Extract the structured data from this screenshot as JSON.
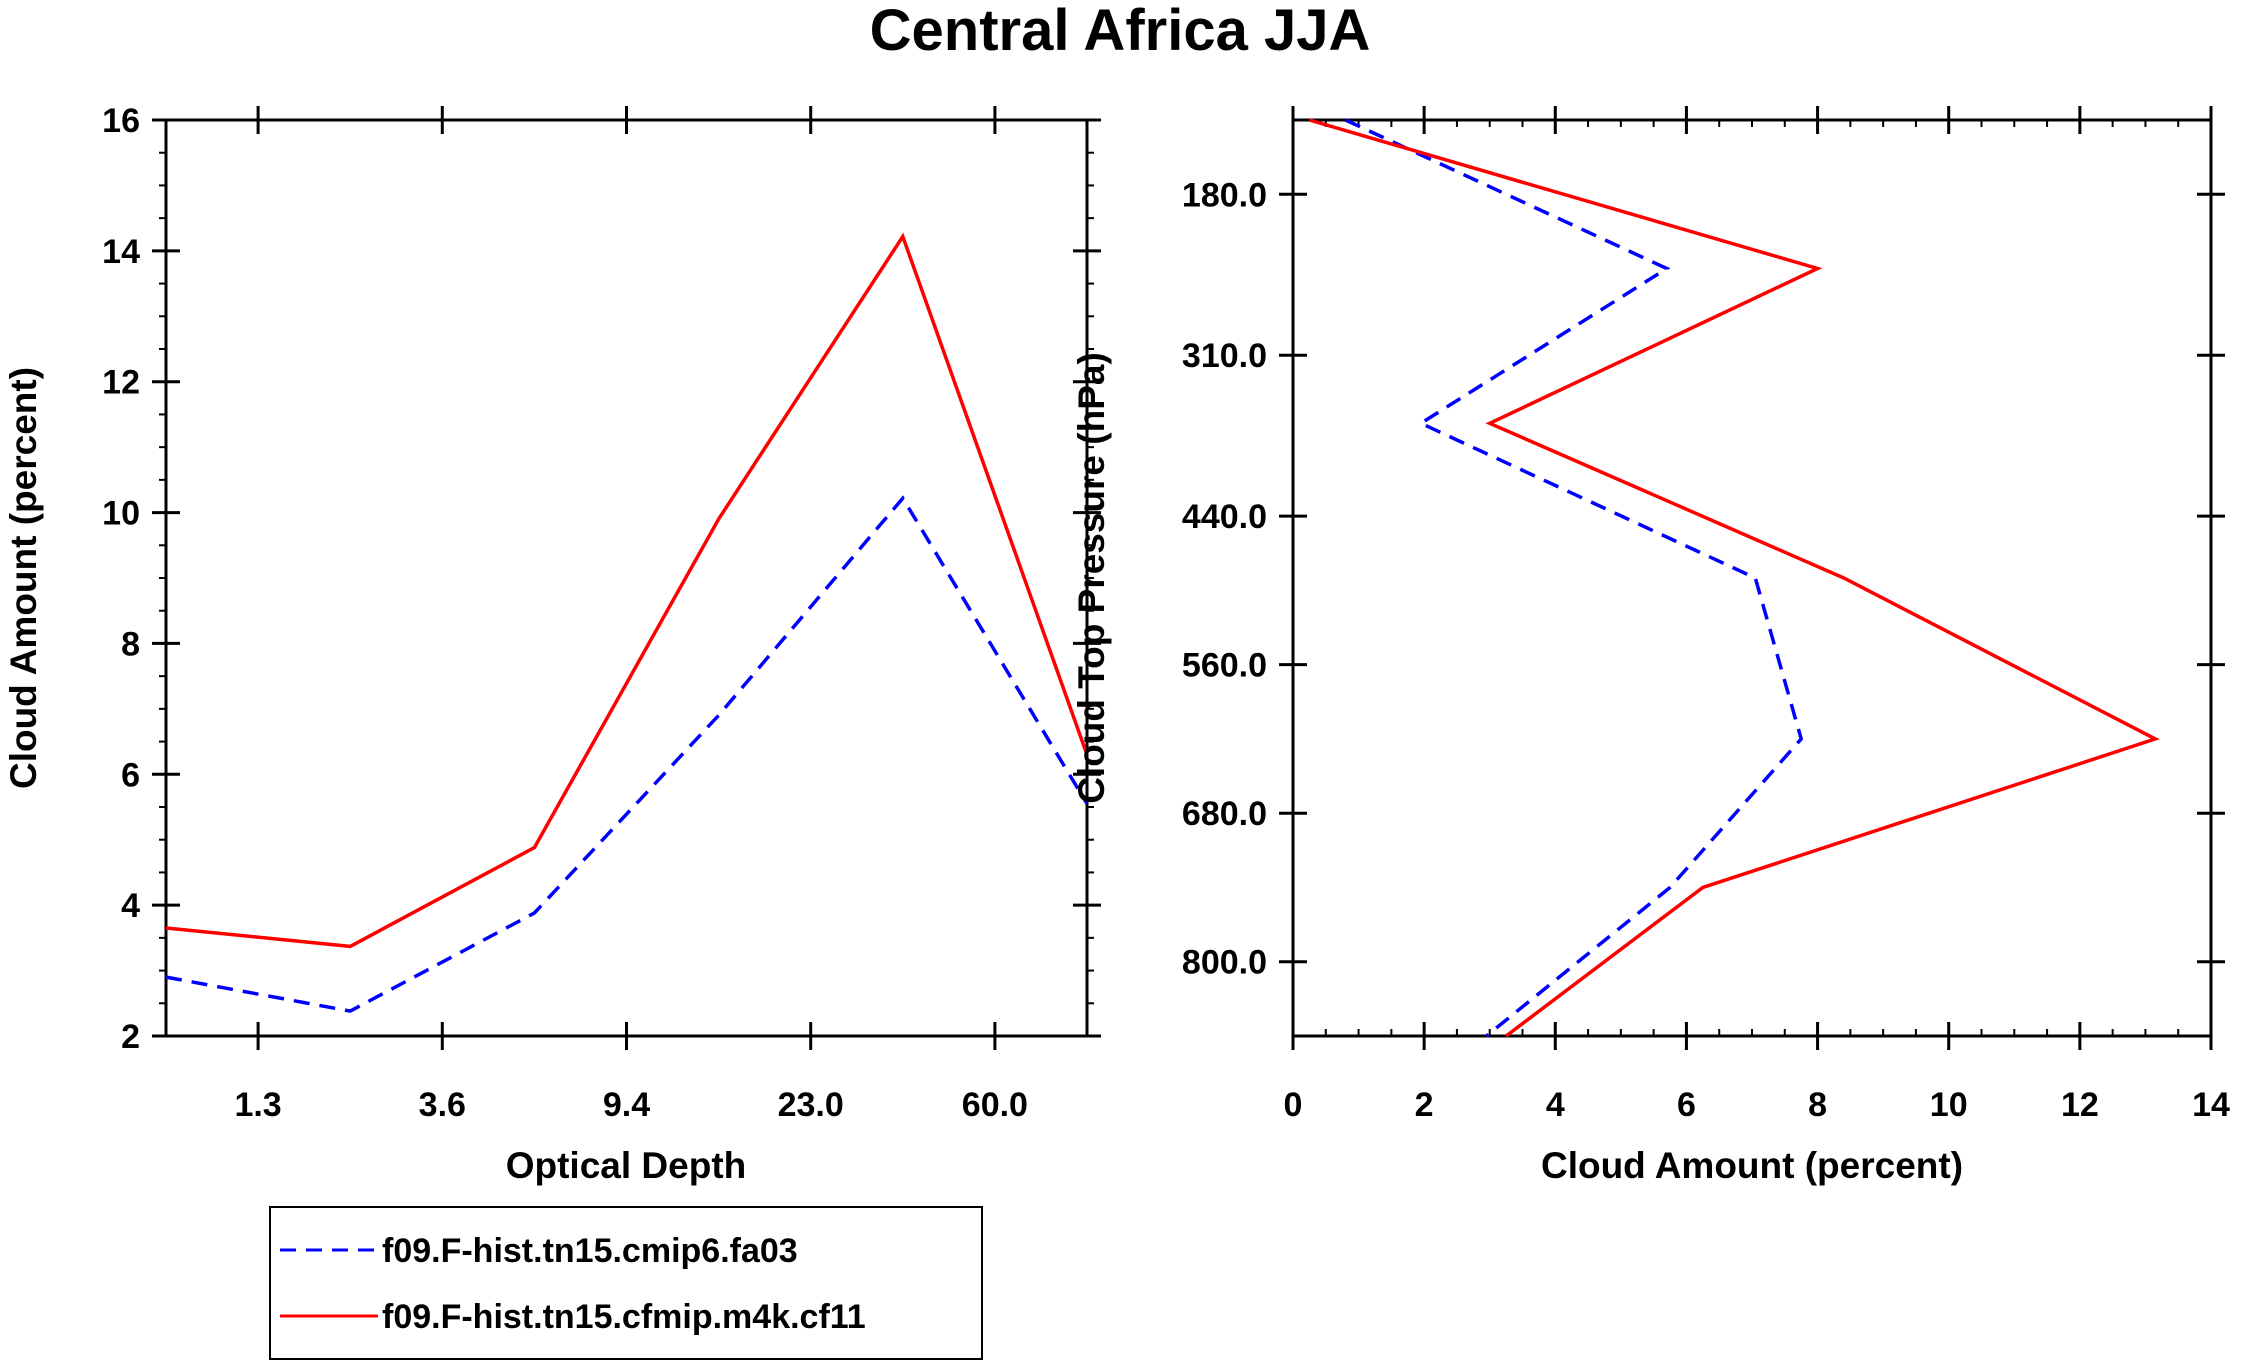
{
  "title": "Central Africa JJA",
  "colors": {
    "series_a": "#0000ff",
    "series_b": "#ff0000",
    "axes": "#000000"
  },
  "legend": {
    "entries": [
      {
        "label": "f09.F-hist.tn15.cmip6.fa03",
        "color": "#0000ff",
        "dash": true
      },
      {
        "label": "f09.F-hist.tn15.cfmip.m4k.cf11",
        "color": "#ff0000",
        "dash": false
      }
    ]
  },
  "chart_data": [
    {
      "type": "line",
      "xlabel": "Optical Depth",
      "ylabel": "Cloud Amount (percent)",
      "x_bins": [
        1,
        2,
        3,
        4,
        5,
        6
      ],
      "xlim": [
        0.5,
        5.5
      ],
      "x_tick_labels": [
        "1.3",
        "3.6",
        "9.4",
        "23.0",
        "60.0"
      ],
      "x_tick_positions": [
        1,
        2,
        3,
        4,
        5
      ],
      "ylim": [
        2,
        16
      ],
      "y_ticks": [
        2,
        4,
        6,
        8,
        10,
        12,
        14,
        16
      ],
      "series": [
        {
          "name": "f09.F-hist.tn15.cmip6.fa03",
          "x": [
            0.5,
            1.5,
            2.5,
            3.5,
            4.5,
            5.5
          ],
          "values": [
            2.9,
            2.38,
            3.88,
            6.9,
            10.22,
            5.55
          ]
        },
        {
          "name": "f09.F-hist.tn15.cfmip.m4k.cf11",
          "x": [
            0.5,
            1.5,
            2.5,
            3.5,
            4.5,
            5.5
          ],
          "values": [
            3.65,
            3.37,
            4.88,
            9.9,
            14.22,
            6.3
          ]
        }
      ]
    },
    {
      "type": "line",
      "xlabel": "Cloud Amount (percent)",
      "ylabel": "Cloud Top Pressure (hPa)",
      "xlim": [
        0,
        14
      ],
      "x_ticks": [
        0,
        2,
        4,
        6,
        8,
        10,
        12,
        14
      ],
      "ylim": [
        120,
        860
      ],
      "y_reversed": true,
      "y_ticks": [
        180.0,
        310.0,
        440.0,
        560.0,
        680.0,
        800.0
      ],
      "y_tick_labels": [
        "180.0",
        "310.0",
        "440.0",
        "560.0",
        "680.0",
        "800.0"
      ],
      "series": [
        {
          "name": "f09.F-hist.tn15.cmip6.fa03",
          "pressure": [
            120,
            240,
            365,
            490,
            620,
            740,
            860
          ],
          "values": [
            0.8,
            5.7,
            1.95,
            7.05,
            7.75,
            5.75,
            2.95
          ]
        },
        {
          "name": "f09.F-hist.tn15.cfmip.m4k.cf11",
          "pressure": [
            120,
            240,
            365,
            490,
            620,
            740,
            860
          ],
          "values": [
            0.25,
            8.0,
            3.0,
            8.4,
            13.15,
            6.25,
            3.25
          ]
        }
      ]
    }
  ]
}
